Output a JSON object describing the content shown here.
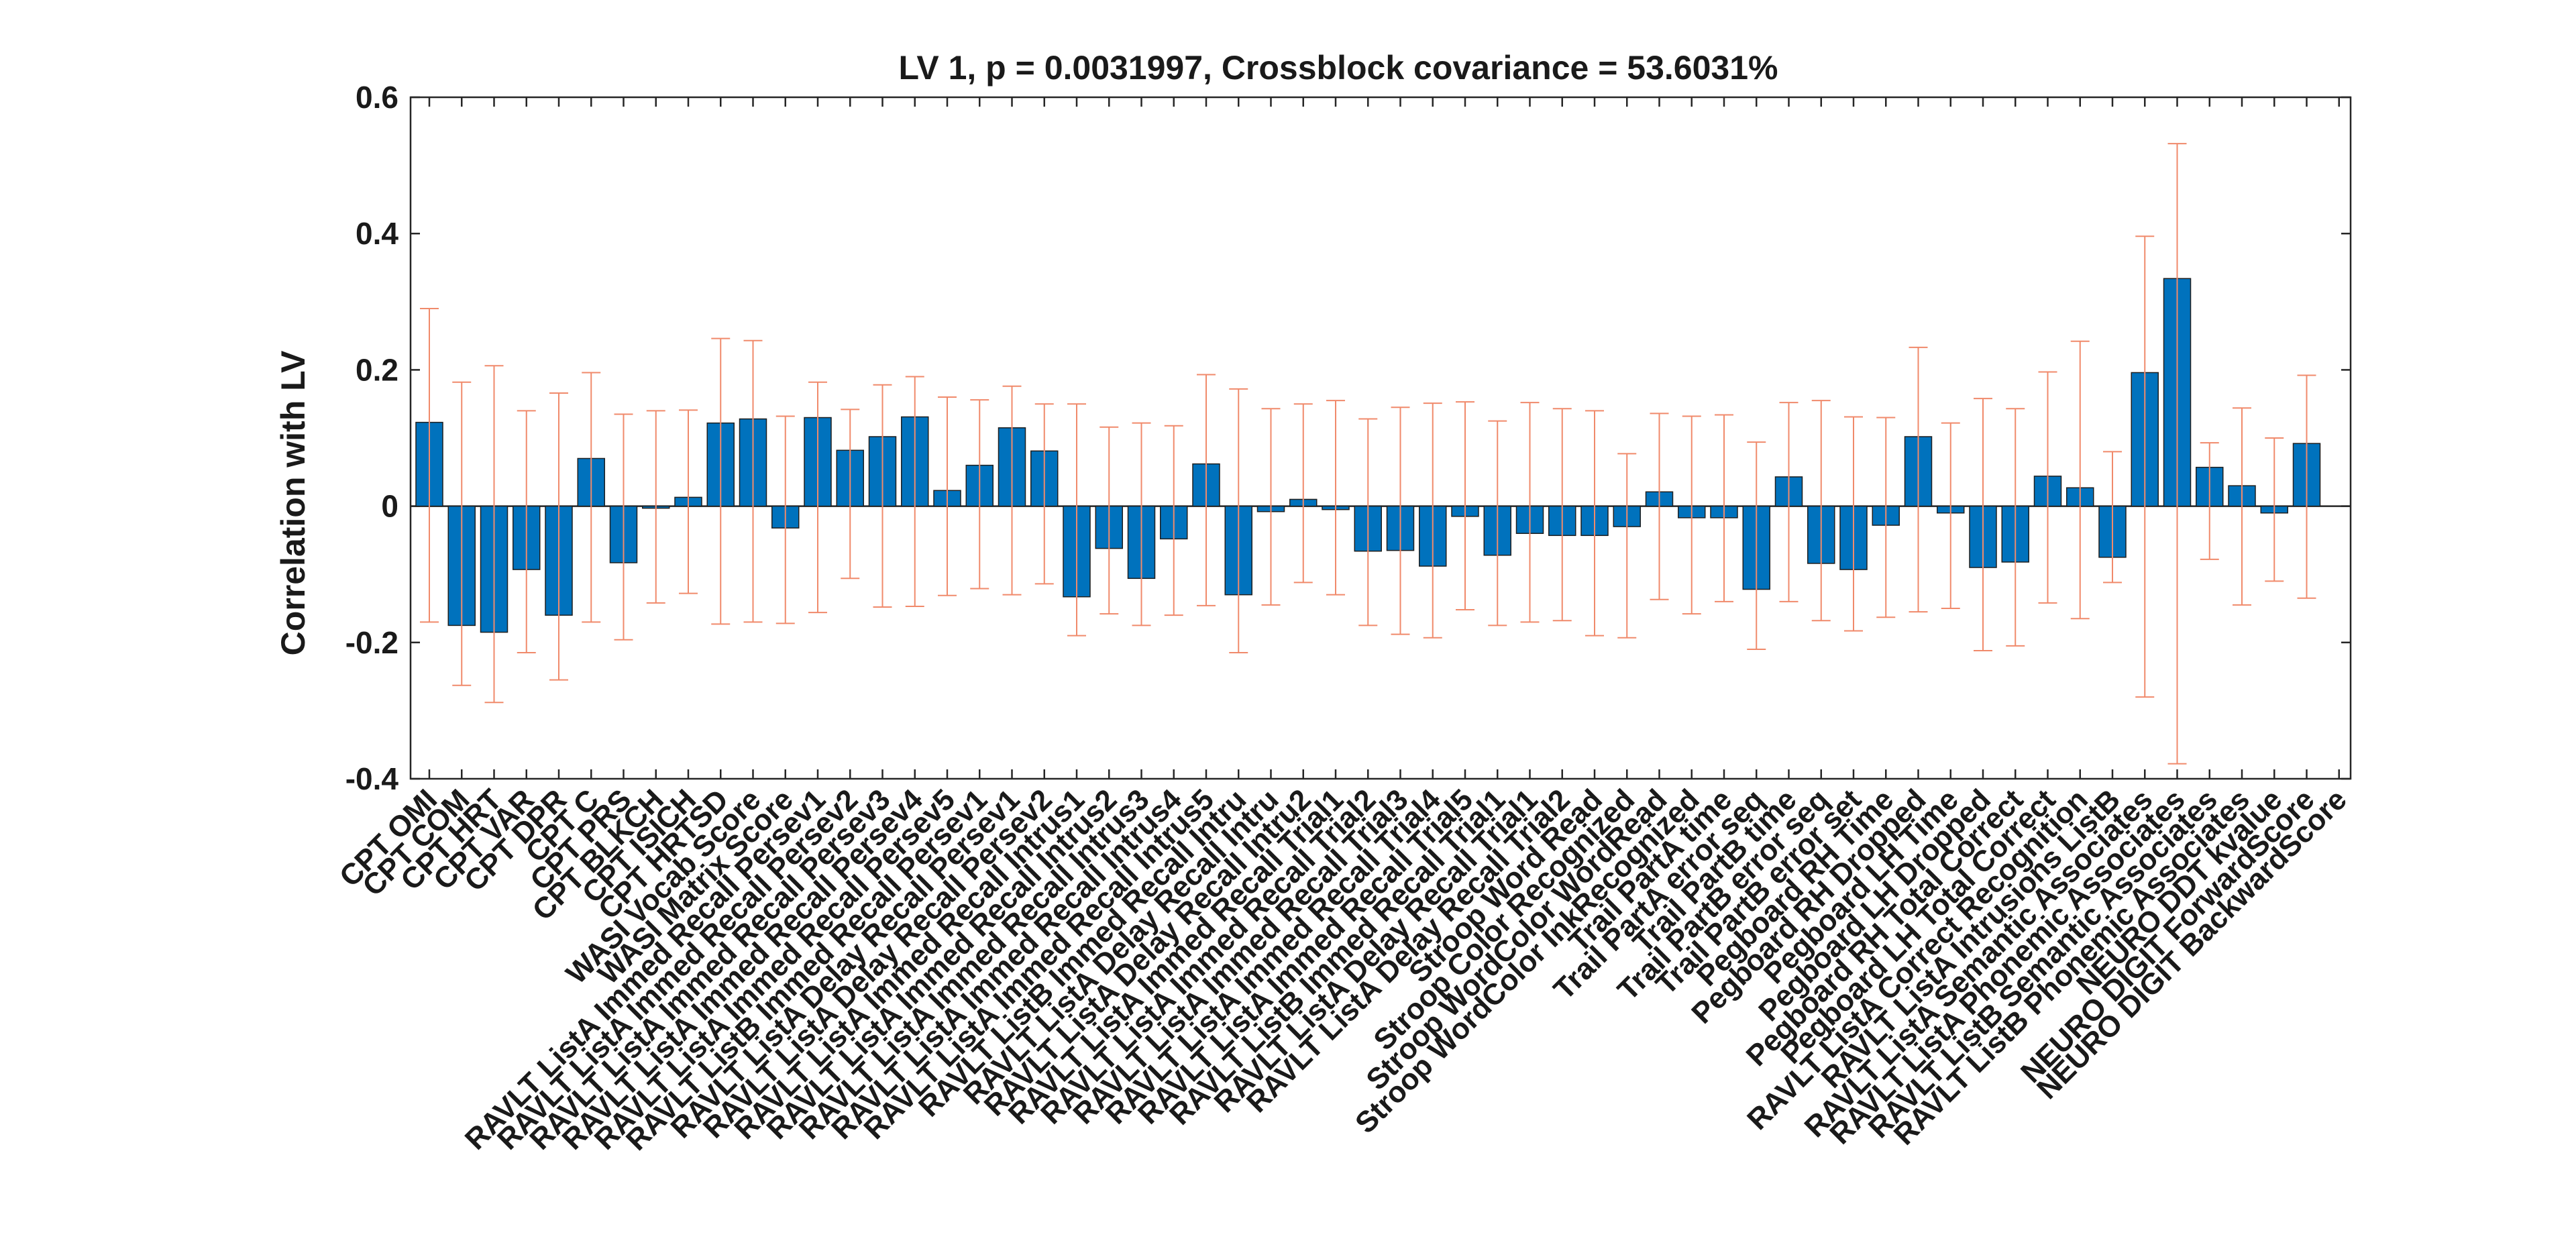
{
  "chart_data": {
    "type": "bar",
    "title": "LV 1, p = 0.0031997, Crossblock covariance = 53.6031%",
    "xlabel": "",
    "ylabel": "Correlation with LV",
    "ylim": [
      -0.4,
      0.6
    ],
    "yticks": [
      -0.4,
      -0.2,
      0,
      0.2,
      0.4,
      0.6
    ],
    "ytick_labels": [
      "-0.4",
      "-0.2",
      "0",
      "0.2",
      "0.4",
      "0.6"
    ],
    "grid": false,
    "legend": "none",
    "bar_color": "#0072BD",
    "bar_edge_color": "#1f1f1f",
    "errorbar_color": "#F08A6B",
    "categories": [
      "CPT OMI",
      "CPT COM",
      "CPT HRT",
      "CPT VAR",
      "CPT DPR",
      "CPT C",
      "CPT PRS",
      "CPT BLKCH",
      "CPT ISICH",
      "CPT HRTSD",
      "WASI Vocab Score",
      "WASI Matrix Score",
      "RAVLT ListA Immed Recall Persev1",
      "RAVLT ListA Immed Recall Persev2",
      "RAVLT ListA Immed Recall Persev3",
      "RAVLT ListA Immed Recall Persev4",
      "RAVLT ListA Immed Recall Persev5",
      "RAVLT ListB Immed Recall Persev1",
      "RAVLT ListA Delay Recall Persev1",
      "RAVLT ListA Delay Recall Persev2",
      "RAVLT ListA Immed Recall Intrus1",
      "RAVLT ListA Immed Recall Intrus2",
      "RAVLT ListA Immed Recall Intrus3",
      "RAVLT ListA Immed Recall Intrus4",
      "RAVLT ListA Immed Recall Intrus5",
      "RAVLT ListB Immed Recall Intru",
      "RAVLT ListA Delay Recall Intru",
      "RAVLT ListA Delay Recall Intru2",
      "RAVLT ListA Immed Recall Trial1",
      "RAVLT ListA Immed Recall Trial2",
      "RAVLT ListA Immed Recall Trial3",
      "RAVLT ListA Immed Recall Trial4",
      "RAVLT ListA Immed Recall Trial5",
      "RAVLT ListB Immed Recall Trial1",
      "RAVLT ListA Delay Recall Trial1",
      "RAVLT ListA Delay Recall Trial2",
      "Stroop Word Read",
      "Stroop Color Recognized",
      "Stroop WordColor WordRead",
      "Stroop WordColor InkRecognized",
      "Trail PartA time",
      "Trail PartA error seq",
      "Trail PartB time",
      "Trail PartB error seq",
      "Trail PartB error set",
      "Pegboard RH Time",
      "Pegboard RH Dropped",
      "Pegboard LH Time",
      "Pegboard LH Dropped",
      "Pegboard RH Total Correct",
      "Pegboard LH Total Correct",
      "RAVLT ListA Correct Recognition",
      "RAVLT ListA Intrusions ListB",
      "RAVLT ListA Semantic Associates",
      "RAVLT ListA Phonemic Associates",
      "RAVLT ListB Semantic Associates",
      "RAVLT ListB Phonemic Associates",
      "NEURO DDT kvalue",
      "NEURO DIGIT ForwardScore",
      "NEURO DIGIT BackwardScore"
    ],
    "values": [
      0.123,
      -0.175,
      -0.185,
      -0.093,
      -0.16,
      0.07,
      -0.083,
      -0.003,
      0.013,
      0.122,
      0.128,
      -0.032,
      0.13,
      0.082,
      0.102,
      0.131,
      0.023,
      0.06,
      0.115,
      0.081,
      -0.133,
      -0.062,
      -0.106,
      -0.048,
      0.062,
      -0.13,
      -0.008,
      0.01,
      -0.005,
      -0.066,
      -0.065,
      -0.088,
      -0.015,
      -0.072,
      -0.04,
      -0.043,
      -0.043,
      -0.03,
      0.021,
      -0.017,
      -0.017,
      -0.122,
      0.043,
      -0.084,
      -0.093,
      -0.028,
      0.102,
      -0.01,
      -0.09,
      -0.082,
      0.044,
      0.027,
      -0.075,
      0.196,
      0.334,
      0.057,
      0.03,
      -0.01,
      0.092,
      0.0
    ],
    "error_upper": [
      0.29,
      0.182,
      0.206,
      0.14,
      0.166,
      0.196,
      0.135,
      0.14,
      0.141,
      0.246,
      0.243,
      0.132,
      0.182,
      0.142,
      0.178,
      0.19,
      0.16,
      0.156,
      0.176,
      0.15,
      0.15,
      0.116,
      0.122,
      0.118,
      0.193,
      0.172,
      0.143,
      0.15,
      0.155,
      0.128,
      0.145,
      0.151,
      0.153,
      0.125,
      0.152,
      0.143,
      0.14,
      0.077,
      0.136,
      0.132,
      0.134,
      0.094,
      0.152,
      0.155,
      0.131,
      0.13,
      0.233,
      0.122,
      0.158,
      0.143,
      0.197,
      0.242,
      0.08,
      0.396,
      0.532,
      0.093,
      0.144,
      0.1,
      0.192,
      0.0
    ],
    "error_lower": [
      -0.17,
      -0.263,
      -0.288,
      -0.215,
      -0.255,
      -0.17,
      -0.196,
      -0.142,
      -0.128,
      -0.173,
      -0.17,
      -0.172,
      -0.156,
      -0.106,
      -0.148,
      -0.147,
      -0.131,
      -0.121,
      -0.13,
      -0.114,
      -0.19,
      -0.158,
      -0.175,
      -0.16,
      -0.146,
      -0.215,
      -0.145,
      -0.112,
      -0.13,
      -0.175,
      -0.188,
      -0.193,
      -0.152,
      -0.175,
      -0.17,
      -0.168,
      -0.19,
      -0.193,
      -0.137,
      -0.158,
      -0.14,
      -0.21,
      -0.14,
      -0.168,
      -0.183,
      -0.163,
      -0.155,
      -0.15,
      -0.212,
      -0.205,
      -0.142,
      -0.165,
      -0.112,
      -0.28,
      -0.378,
      -0.078,
      -0.145,
      -0.11,
      -0.135,
      0.0
    ]
  }
}
